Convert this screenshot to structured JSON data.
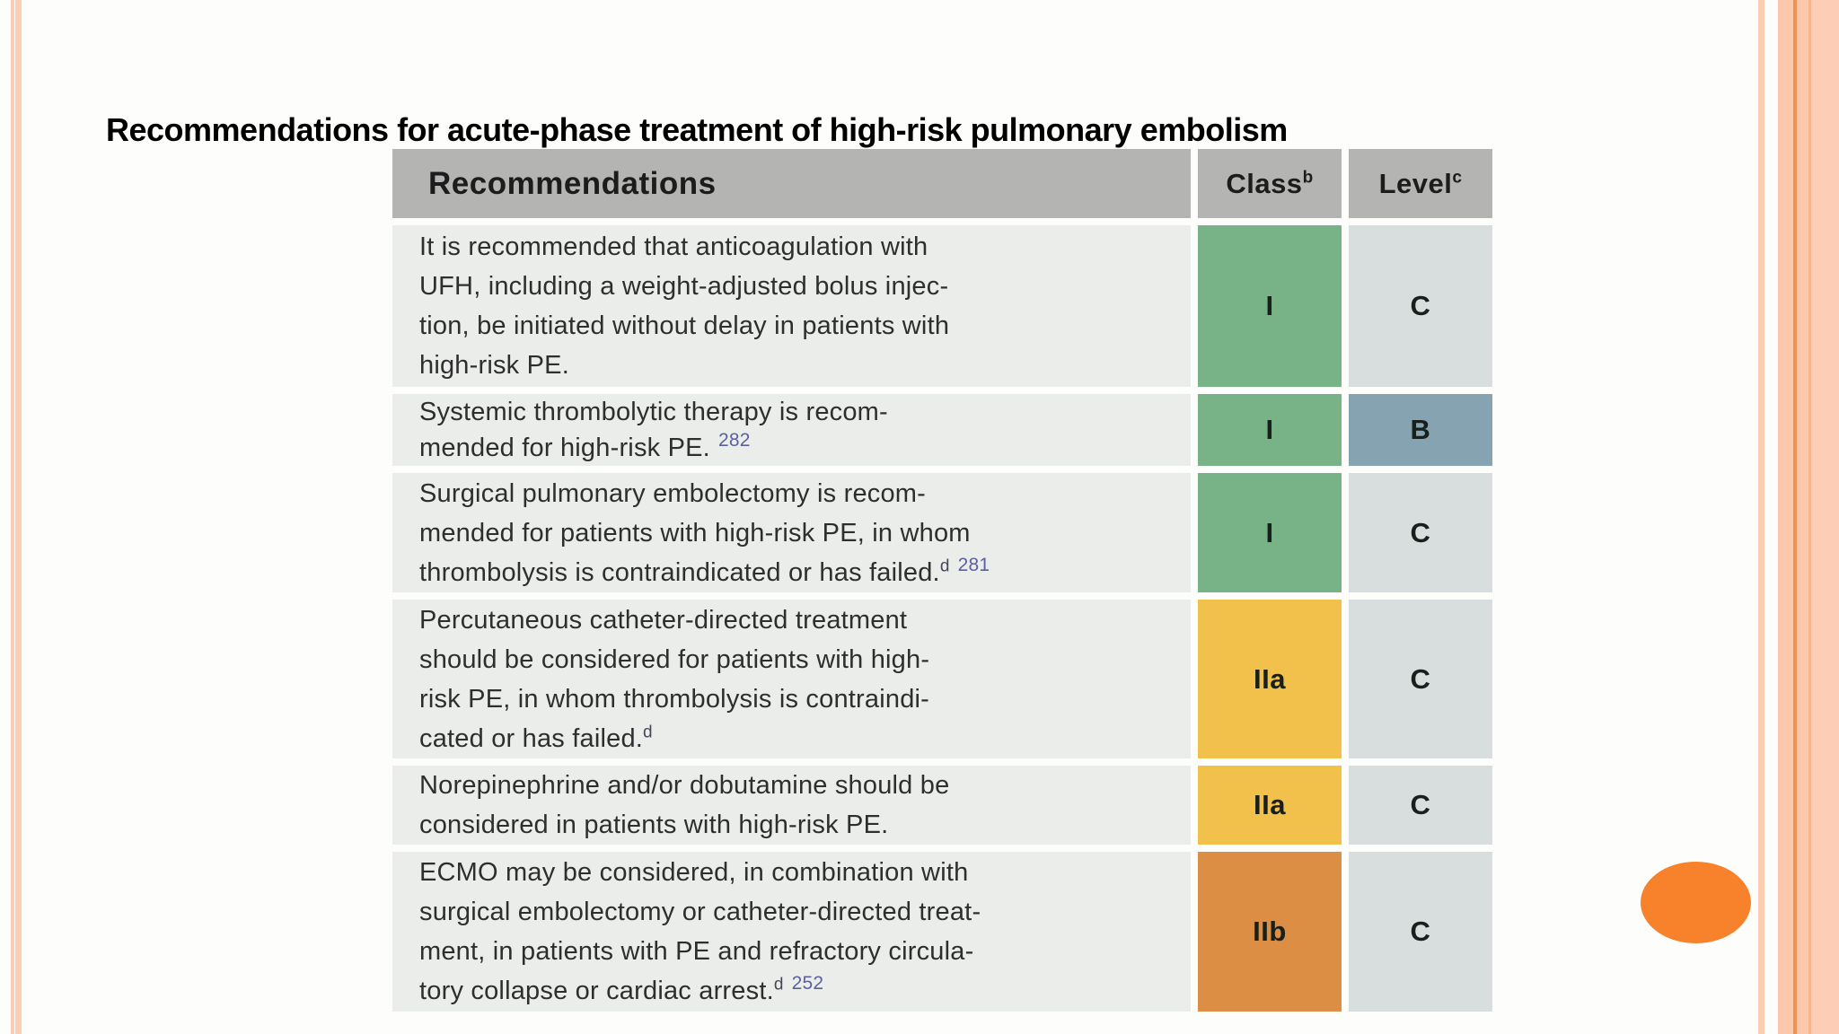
{
  "slide": {
    "title": "Recommendations for acute-phase treatment of high-risk pulmonary embolism"
  },
  "table": {
    "headers": {
      "recommendations": "Recommendations",
      "class_label": "Class",
      "class_sup": "b",
      "level_label": "Level",
      "level_sup": "c"
    },
    "rows": [
      {
        "text_lines": [
          "It is recommended that anticoagulation with",
          "UFH, including a weight-adjusted bolus injec-",
          "tion, be initiated without delay in patients with",
          "high-risk PE."
        ],
        "sup_note": "",
        "sup_ref": "",
        "class": "I",
        "class_color": "green",
        "level": "C",
        "level_color": "lvlc"
      },
      {
        "text_lines": [
          "Systemic thrombolytic therapy is recom-",
          "mended for high-risk PE."
        ],
        "sup_note": "",
        "sup_ref": "282",
        "class": "I",
        "class_color": "green",
        "level": "B",
        "level_color": "lvlb"
      },
      {
        "text_lines": [
          "Surgical pulmonary embolectomy is recom-",
          "mended for patients with high-risk PE, in whom",
          "thrombolysis is contraindicated or has failed."
        ],
        "sup_note": "d",
        "sup_ref": "281",
        "class": "I",
        "class_color": "green",
        "level": "C",
        "level_color": "lvlc"
      },
      {
        "text_lines": [
          "Percutaneous catheter-directed treatment",
          "should be considered for patients with high-",
          "risk PE, in whom thrombolysis is contraindi-",
          "cated or has failed."
        ],
        "sup_note": "d",
        "sup_ref": "",
        "class": "IIa",
        "class_color": "yellow",
        "level": "C",
        "level_color": "lvlc"
      },
      {
        "text_lines": [
          "Norepinephrine and/or dobutamine should be",
          "considered in patients with high-risk PE."
        ],
        "sup_note": "",
        "sup_ref": "",
        "class": "IIa",
        "class_color": "yellow",
        "level": "C",
        "level_color": "lvlc"
      },
      {
        "text_lines": [
          "ECMO may be considered, in combination with",
          "surgical embolectomy or catheter-directed treat-",
          "ment, in patients with PE and refractory circula-",
          "tory collapse or cardiac arrest."
        ],
        "sup_note": "d",
        "sup_ref": "252",
        "class": "IIb",
        "class_color": "orange",
        "level": "C",
        "level_color": "lvlc"
      }
    ]
  },
  "colors": {
    "class_i_bg": "#77b387",
    "class_iia_bg": "#f2c14b",
    "class_iib_bg": "#dc8e45",
    "level_b_bg": "#86a3b2",
    "level_c_bg": "#d7dedd",
    "header_bg": "#b4b4b2",
    "row_bg": "#ebedeb",
    "reference_superscript": "#5c5fa0",
    "border_stripe": "#fccdb3",
    "ellipse": "#f8812b"
  }
}
